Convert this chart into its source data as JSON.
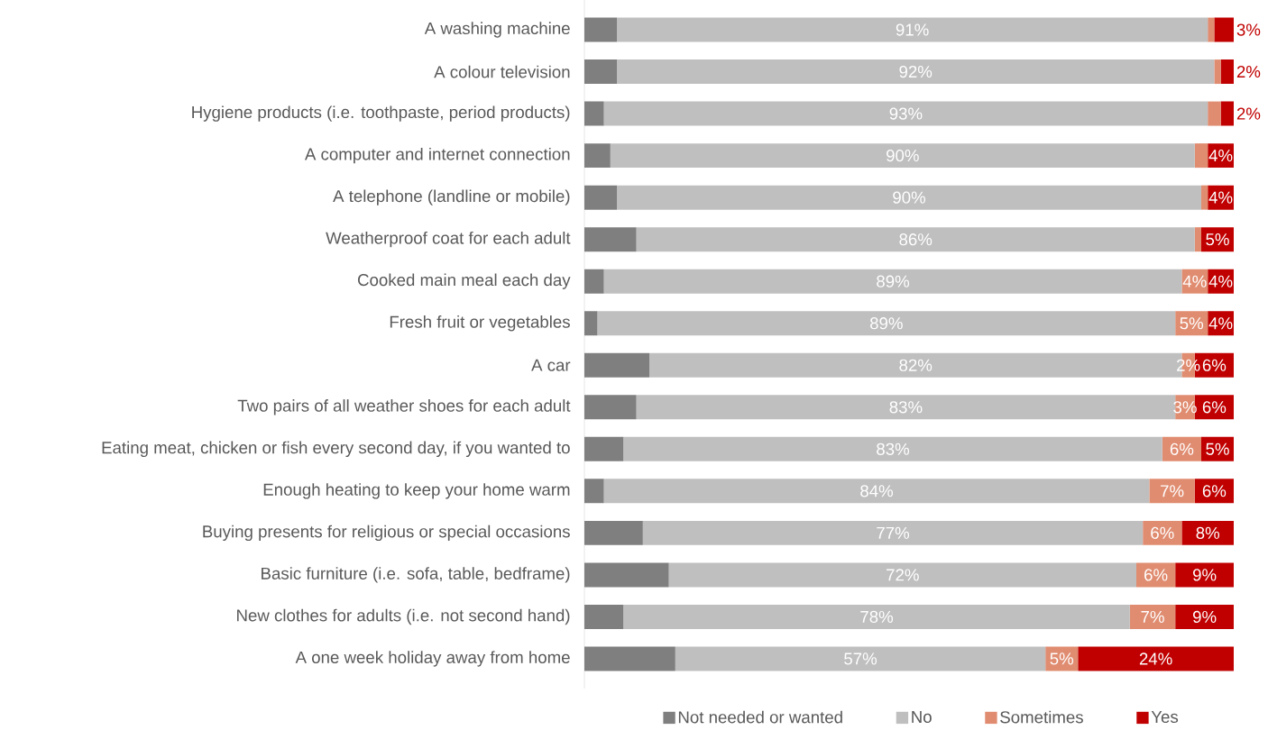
{
  "chart_data": {
    "type": "bar",
    "orientation": "horizontal",
    "stacked": true,
    "categories": [
      "A washing machine",
      "A colour television",
      "Hygiene products (i.e. toothpaste, period products)",
      "A computer and internet connection",
      "A telephone (landline or mobile)",
      "Weatherproof coat for each adult",
      "Cooked main meal each day",
      "Fresh fruit or vegetables",
      "A car",
      "Two pairs of all weather shoes for each adult",
      "Eating meat, chicken or fish every second day, if you wanted to",
      "Enough heating to keep your home warm",
      "Buying presents for religious or special occasions",
      "Basic furniture (i.e. sofa, table, bedframe)",
      "New clothes for adults (i.e. not second hand)",
      "A one week holiday away from home"
    ],
    "series": [
      {
        "name": "Not needed or wanted",
        "color": "#7f7f7f",
        "values": [
          5,
          5,
          3,
          4,
          5,
          8,
          3,
          2,
          10,
          8,
          6,
          3,
          9,
          13,
          6,
          14
        ]
      },
      {
        "name": "No",
        "color": "#bfbfbf",
        "values": [
          91,
          92,
          93,
          90,
          90,
          86,
          89,
          89,
          82,
          83,
          83,
          84,
          77,
          72,
          78,
          57
        ],
        "value_labels": [
          "91%",
          "92%",
          "93%",
          "90%",
          "90%",
          "86%",
          "89%",
          "89%",
          "82%",
          "83%",
          "83%",
          "84%",
          "77%",
          "72%",
          "78%",
          "57%"
        ]
      },
      {
        "name": "Sometimes",
        "color": "#e08c70",
        "values": [
          1,
          1,
          2,
          2,
          1,
          1,
          4,
          5,
          2,
          3,
          6,
          7,
          6,
          6,
          7,
          5
        ],
        "value_labels": [
          null,
          null,
          null,
          null,
          null,
          null,
          "4%",
          "5%",
          "2%",
          "3%",
          "6%",
          "7%",
          "6%",
          "6%",
          "7%",
          "5%"
        ]
      },
      {
        "name": "Yes",
        "color": "#c00000",
        "values": [
          3,
          2,
          2,
          4,
          4,
          5,
          4,
          4,
          6,
          6,
          5,
          6,
          8,
          9,
          9,
          24
        ],
        "value_labels": [
          "3%",
          "2%",
          "2%",
          "4%",
          "4%",
          "5%",
          "4%",
          "4%",
          "6%",
          "6%",
          "5%",
          "6%",
          "8%",
          "9%",
          "9%",
          "24%"
        ]
      }
    ],
    "xlim": [
      0,
      100
    ],
    "tick_labels": "y",
    "legend": "bottom"
  }
}
